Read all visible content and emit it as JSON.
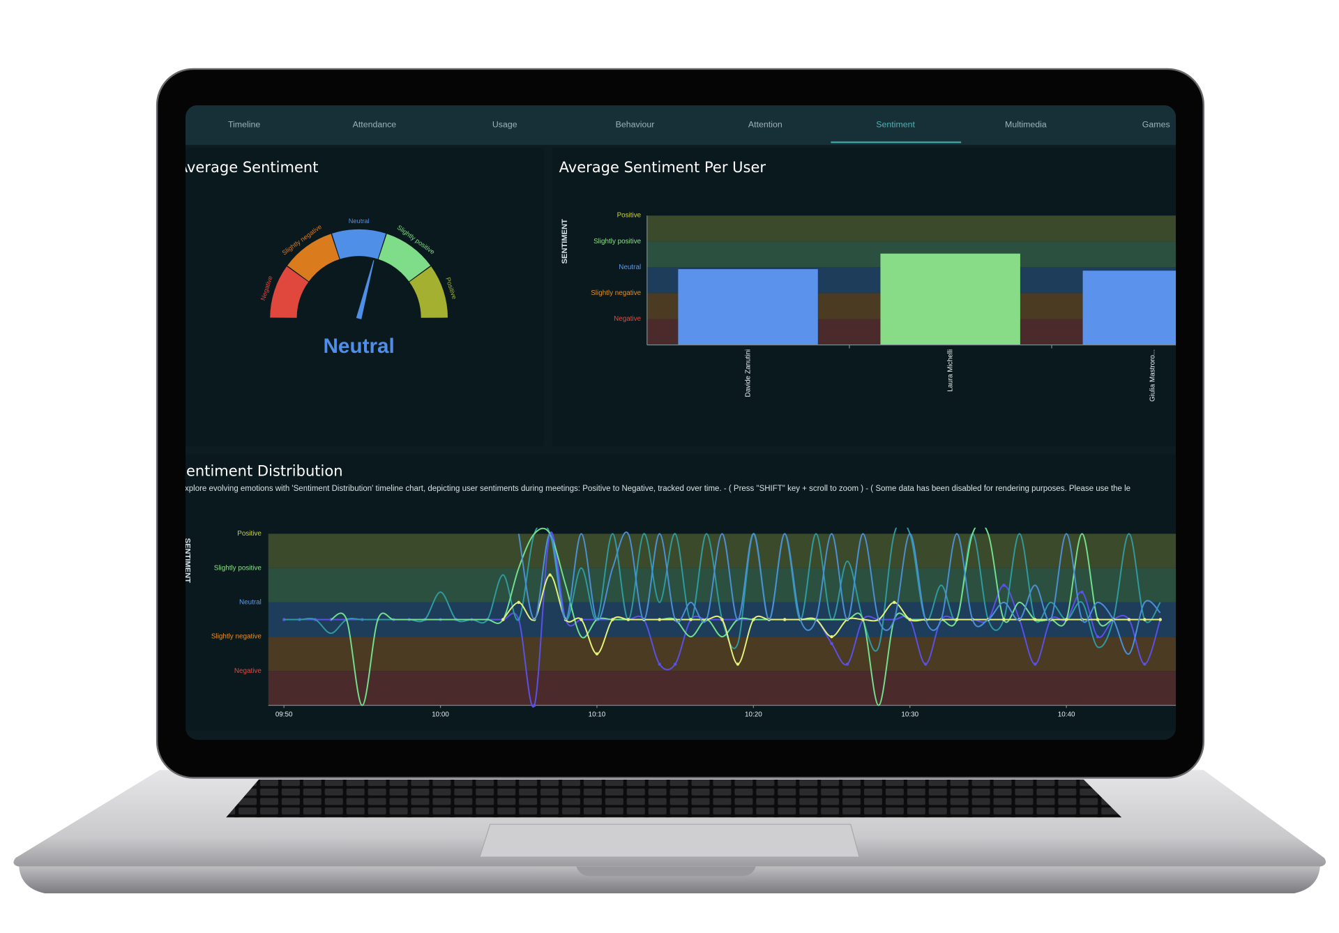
{
  "tabs": [
    "Timeline",
    "Attendance",
    "Usage",
    "Behaviour",
    "Attention",
    "Sentiment",
    "Multimedia",
    "Games"
  ],
  "active_tab": 5,
  "chart_data": [
    {
      "type": "gauge",
      "title": "Average Sentiment",
      "range": [
        -2.5,
        2.5
      ],
      "value": 0.4,
      "value_label": "Neutral",
      "value_color": "#4f8fe8",
      "segments": [
        {
          "label": "Negative",
          "color": "#e0483e"
        },
        {
          "label": "Slightly negative",
          "color": "#da7b1e"
        },
        {
          "label": "Neutral",
          "color": "#4f8fe8"
        },
        {
          "label": "Slightly positive",
          "color": "#7fdc88"
        },
        {
          "label": "Positive",
          "color": "#a4b030"
        }
      ]
    },
    {
      "type": "bar",
      "title": "Average Sentiment Per User",
      "ylabel": "SENTIMENT",
      "categories": [
        "Davide Zanutini",
        "Laura Michelli",
        "Giulia Mastroro..."
      ],
      "values": [
        -0.07,
        0.53,
        -0.13
      ],
      "colors": [
        "#5a92ec",
        "#88dc88",
        "#5a92ec"
      ],
      "ylim": [
        -3,
        2
      ],
      "yticks": [
        {
          "value": 2,
          "label": "Positive"
        },
        {
          "value": 1,
          "label": "Slightly positive"
        },
        {
          "value": 0,
          "label": "Neutral"
        },
        {
          "value": -1,
          "label": "Slightly negative"
        },
        {
          "value": -2,
          "label": "Negative"
        }
      ],
      "tick_colors": [
        "#c9d43c",
        "#8fe08f",
        "#5b9cf0",
        "#e0902a",
        "#e24a40"
      ],
      "band_colors": [
        "#3a4a2a",
        "#2c5040",
        "#1e3d5a",
        "#4a3b22",
        "#4a2a2a"
      ]
    },
    {
      "type": "line",
      "title": "Sentiment Distribution",
      "subtitle": "Explore evolving emotions with 'Sentiment Distribution' timeline chart, depicting user sentiments during meetings: Positive to Negative, tracked over time. - ( Press \"SHIFT\" key + scroll to zoom ) - ( Some data has been disabled for rendering purposes. Please use the le",
      "ylabel": "SENTIMENT",
      "x": [
        "09:50",
        "09:51",
        "09:52",
        "09:53",
        "09:54",
        "09:55",
        "09:56",
        "09:57",
        "09:58",
        "09:59",
        "10:00",
        "10:01",
        "10:02",
        "10:03",
        "10:04",
        "10:05",
        "10:06",
        "10:07",
        "10:08",
        "10:09",
        "10:10",
        "10:11",
        "10:12",
        "10:13",
        "10:14",
        "10:15",
        "10:16",
        "10:17",
        "10:18",
        "10:19",
        "10:20",
        "10:21",
        "10:22",
        "10:23",
        "10:24",
        "10:25",
        "10:26",
        "10:27",
        "10:28",
        "10:29",
        "10:30",
        "10:31",
        "10:32",
        "10:33",
        "10:34",
        "10:35",
        "10:36",
        "10:37",
        "10:38",
        "10:39",
        "10:40",
        "10:41",
        "10:42",
        "10:43",
        "10:44",
        "10:45",
        "10:46"
      ],
      "xlim": [
        "09:49",
        "10:47"
      ],
      "xticks": [
        "09:50",
        "10:00",
        "10:10",
        "10:20",
        "10:30",
        "10:40"
      ],
      "ylim": [
        -3,
        2
      ],
      "yticks": [
        {
          "value": 2,
          "label": "Positive"
        },
        {
          "value": 1,
          "label": "Slightly positive"
        },
        {
          "value": 0,
          "label": "Neutral"
        },
        {
          "value": -1,
          "label": "Slightly negative"
        },
        {
          "value": -2,
          "label": "Negative"
        }
      ],
      "tick_colors": [
        "#c9d43c",
        "#8fe08f",
        "#5b9cf0",
        "#e0902a",
        "#e24a40"
      ],
      "band_colors": [
        "#3a4a2a",
        "#2c5040",
        "#1e3d5a",
        "#4a3b22",
        "#4a2a2a"
      ],
      "series": [
        {
          "color": "#5b50e8",
          "markers": true,
          "values": [
            -0.5,
            -0.5,
            -0.5,
            -0.5,
            -0.5,
            -0.5,
            -0.5,
            -0.5,
            -0.5,
            -0.5,
            -0.5,
            -0.5,
            -0.5,
            -0.5,
            -0.5,
            -0.5,
            -3,
            2,
            -0.5,
            -0.5,
            -0.5,
            -0.5,
            -0.5,
            -0.5,
            -1.8,
            -1.8,
            -0.5,
            -0.5,
            -0.5,
            -0.5,
            -0.5,
            -0.5,
            -0.5,
            -0.5,
            -0.5,
            -1.2,
            -1.8,
            -0.5,
            -0.5,
            -0.5,
            -0.5,
            -1.8,
            -0.5,
            -0.5,
            -0.5,
            -0.5,
            0.5,
            -0.5,
            -1.8,
            -0.5,
            -0.5,
            0.3,
            -1,
            -0.5,
            -0.5,
            -1.8,
            -0.5
          ]
        },
        {
          "color": "#2f9aa0",
          "markers": false,
          "values": [
            -0.5,
            -0.5,
            -0.5,
            -0.9,
            -0.5,
            -0.5,
            -0.5,
            -0.5,
            -0.5,
            -0.5,
            0.3,
            -0.5,
            -0.5,
            -0.5,
            0.8,
            -0.5,
            2,
            2,
            -0.5,
            1,
            -0.5,
            2,
            -0.5,
            2,
            0,
            2,
            -0.5,
            2,
            -0.5,
            -1.2,
            2,
            -0.5,
            2,
            -0.5,
            2,
            -0.5,
            1.2,
            -0.5,
            -1.3,
            2,
            2,
            -0.5,
            0.5,
            -0.5,
            2,
            -0.5,
            -0.5,
            2,
            -0.5,
            0,
            -0.5,
            0,
            -1.3,
            -0.5,
            2,
            -0.5,
            0
          ]
        },
        {
          "color": "#72e08c",
          "markers": false,
          "values": [
            null,
            null,
            null,
            -0.5,
            -0.5,
            -3,
            -0.5,
            -0.5,
            -0.5,
            -0.5,
            -0.5,
            -0.5,
            -0.5,
            -0.5,
            -0.5,
            1,
            2,
            2,
            0.5,
            -1,
            -0.5,
            -0.5,
            -0.5,
            -0.5,
            -0.5,
            -0.5,
            -1,
            -0.5,
            -1,
            -0.5,
            -0.5,
            -0.5,
            -0.5,
            -0.5,
            -0.5,
            -0.5,
            -0.5,
            -0.5,
            -3,
            -0.5,
            -0.5,
            -0.5,
            -0.5,
            -0.5,
            2,
            2,
            -0.5,
            0,
            -0.5,
            -0.5,
            -0.5,
            2,
            -0.5,
            -0.5,
            -0.5,
            -0.5,
            -0.5
          ]
        },
        {
          "color": "#e6f27a",
          "markers": true,
          "values": [
            null,
            null,
            null,
            null,
            null,
            null,
            null,
            null,
            null,
            null,
            null,
            null,
            null,
            null,
            -0.5,
            0,
            -0.5,
            0.8,
            -0.5,
            -0.5,
            -1.5,
            -0.5,
            -0.5,
            -0.5,
            -0.5,
            -0.5,
            -0.5,
            -0.5,
            -0.5,
            -1.8,
            -0.5,
            -0.5,
            -0.5,
            -0.5,
            -0.5,
            -1,
            -0.5,
            -0.5,
            -0.5,
            0,
            -0.5,
            -0.5,
            -0.5,
            -0.5,
            -0.5,
            -0.5,
            -0.5,
            -0.5,
            -0.5,
            -0.5,
            -0.5,
            -0.5,
            -0.5,
            -0.5,
            -0.5,
            -0.5,
            -0.5
          ]
        },
        {
          "color": "#4b8fd6",
          "markers": false,
          "values": [
            null,
            null,
            null,
            null,
            null,
            null,
            null,
            null,
            null,
            null,
            null,
            null,
            null,
            null,
            null,
            2,
            -0.5,
            2,
            -0.5,
            2,
            -0.5,
            1,
            2,
            -0.5,
            2,
            -0.5,
            0,
            -0.5,
            2,
            -0.5,
            2,
            -0.5,
            2,
            -0.5,
            -0.5,
            2,
            -0.5,
            2,
            -0.5,
            -0.5,
            2,
            -0.5,
            -0.5,
            2,
            -0.5,
            -0.5,
            0,
            -0.5,
            0.5,
            -0.5,
            2,
            -0.5,
            0,
            -0.5,
            -1.5,
            0,
            -0.3
          ]
        }
      ]
    }
  ]
}
